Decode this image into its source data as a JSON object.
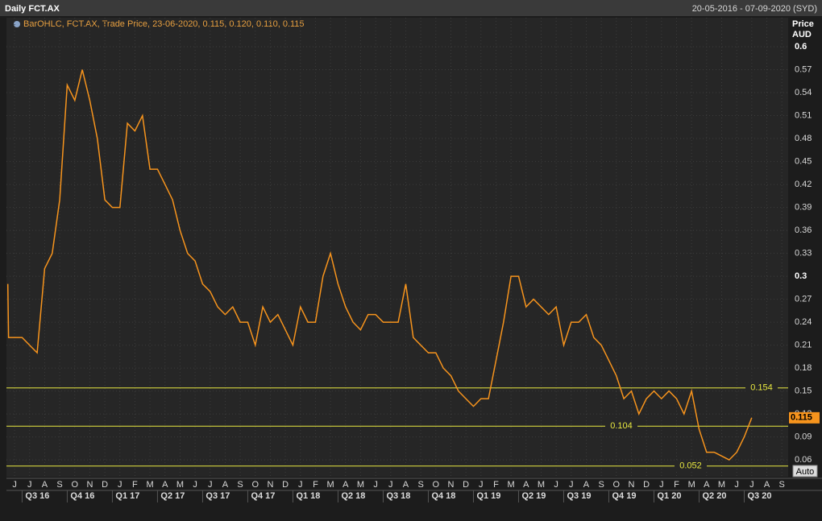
{
  "title": "Daily FCT.AX",
  "date_range": "20-05-2016 - 07-09-2020 (SYD)",
  "chart_data": {
    "type": "line",
    "legend": "BarOHLC, FCT.AX, Trade Price, 23-06-2020, 0.115, 0.120, 0.110, 0.115",
    "y_axis_label": "Price",
    "y_axis_unit": "AUD",
    "color": "#f7941d",
    "grid": true,
    "x": [
      -0.45,
      -0.4,
      0,
      0.5,
      1,
      1.5,
      2,
      2.5,
      3,
      3.5,
      4,
      4.5,
      5,
      5.5,
      6,
      6.5,
      7,
      7.5,
      8,
      8.5,
      9,
      9.5,
      10,
      10.5,
      11,
      11.5,
      12,
      12.5,
      13,
      13.5,
      14,
      14.5,
      15,
      15.5,
      16,
      16.5,
      17,
      17.5,
      18,
      18.5,
      19,
      19.5,
      20,
      20.5,
      21,
      21.5,
      22,
      22.5,
      23,
      23.5,
      24,
      24.5,
      25,
      25.5,
      26,
      26.5,
      27,
      27.5,
      28,
      28.5,
      29,
      29.5,
      30,
      30.5,
      31,
      31.5,
      32,
      32.5,
      33,
      33.5,
      34,
      34.5,
      35,
      35.5,
      36,
      36.5,
      37,
      37.5,
      38,
      38.5,
      39,
      39.5,
      40,
      40.5,
      41,
      41.5,
      42,
      42.5,
      43,
      43.5,
      44,
      44.5,
      45,
      45.5,
      46,
      46.5,
      47,
      47.5,
      48,
      48.5,
      49
    ],
    "values": [
      0.29,
      0.22,
      0.22,
      0.22,
      0.21,
      0.2,
      0.31,
      0.33,
      0.4,
      0.55,
      0.53,
      0.57,
      0.53,
      0.48,
      0.4,
      0.39,
      0.39,
      0.5,
      0.49,
      0.51,
      0.44,
      0.44,
      0.42,
      0.4,
      0.36,
      0.33,
      0.32,
      0.29,
      0.28,
      0.26,
      0.25,
      0.26,
      0.24,
      0.24,
      0.21,
      0.26,
      0.24,
      0.25,
      0.23,
      0.21,
      0.26,
      0.24,
      0.24,
      0.3,
      0.33,
      0.29,
      0.26,
      0.24,
      0.23,
      0.25,
      0.25,
      0.24,
      0.24,
      0.24,
      0.29,
      0.22,
      0.21,
      0.2,
      0.2,
      0.18,
      0.17,
      0.15,
      0.14,
      0.13,
      0.14,
      0.14,
      0.19,
      0.24,
      0.3,
      0.3,
      0.26,
      0.27,
      0.26,
      0.25,
      0.26,
      0.21,
      0.24,
      0.24,
      0.25,
      0.22,
      0.21,
      0.19,
      0.17,
      0.14,
      0.15,
      0.12,
      0.14,
      0.15,
      0.14,
      0.15,
      0.14,
      0.12,
      0.15,
      0.1,
      0.07,
      0.07,
      0.065,
      0.06,
      0.07,
      0.09,
      0.115
    ],
    "last_value": 0.115,
    "levels": [
      0.154,
      0.104,
      0.052
    ],
    "xlim": [
      -0.54,
      51.42
    ],
    "ylim": [
      0.038,
      0.619
    ],
    "yticks": [
      0.06,
      0.09,
      0.12,
      0.15,
      0.18,
      0.21,
      0.24,
      0.27,
      0.3,
      0.33,
      0.36,
      0.39,
      0.42,
      0.45,
      0.48,
      0.51,
      0.54,
      0.57,
      0.6
    ],
    "categories": [
      "J",
      "J",
      "A",
      "S",
      "O",
      "N",
      "D",
      "J",
      "F",
      "M",
      "A",
      "M",
      "J",
      "J",
      "A",
      "S",
      "O",
      "N",
      "D",
      "J",
      "F",
      "M",
      "A",
      "M",
      "J",
      "J",
      "A",
      "S",
      "O",
      "N",
      "D",
      "J",
      "F",
      "M",
      "A",
      "M",
      "J",
      "J",
      "A",
      "S",
      "O",
      "N",
      "D",
      "J",
      "F",
      "M",
      "A",
      "M",
      "J",
      "J",
      "A",
      "S"
    ],
    "quarters": [
      "Q3 16",
      "Q4 16",
      "Q1 17",
      "Q2 17",
      "Q3 17",
      "Q4 17",
      "Q1 18",
      "Q2 18",
      "Q3 18",
      "Q4 18",
      "Q1 19",
      "Q2 19",
      "Q3 19",
      "Q4 19",
      "Q1 20",
      "Q2 20",
      "Q3 20"
    ],
    "button": "Auto"
  }
}
